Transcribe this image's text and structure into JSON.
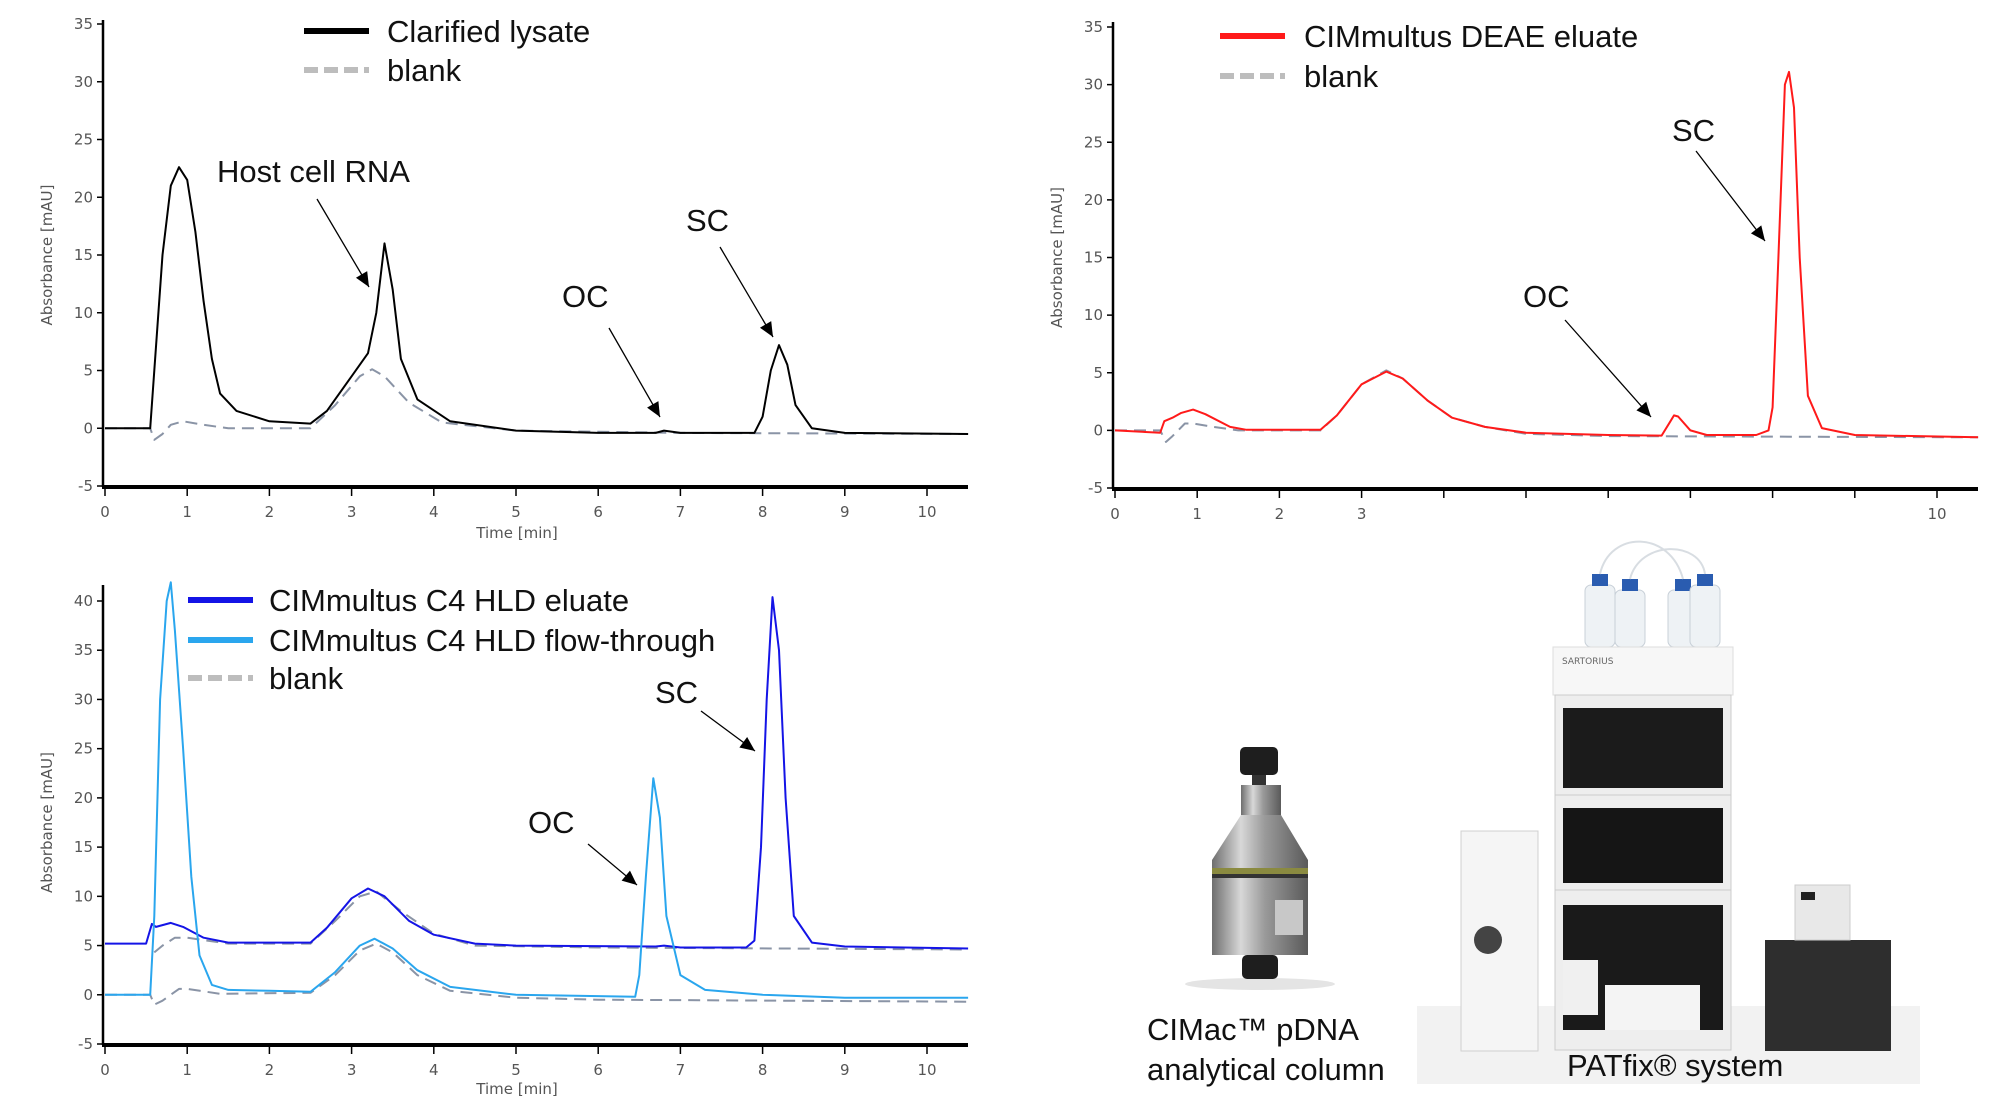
{
  "chart_data": [
    {
      "type": "line",
      "id": "c1",
      "xlabel": "Time [min]",
      "ylabel": "Absorbance [mAU]",
      "xlim": [
        0,
        10.5
      ],
      "ylim": [
        -5,
        35
      ],
      "xticks": [
        "0",
        "1",
        "2",
        "3",
        "4",
        "5",
        "6",
        "7",
        "8",
        "9",
        "10"
      ],
      "yticks": [
        "-5",
        "0",
        "5",
        "10",
        "15",
        "20",
        "25",
        "30",
        "35"
      ],
      "series": [
        {
          "name": "Clarified lysate",
          "color": "#000000",
          "style": "solid",
          "legend": true,
          "points": [
            [
              0,
              0
            ],
            [
              0.55,
              0
            ],
            [
              0.6,
              5
            ],
            [
              0.7,
              15
            ],
            [
              0.8,
              21
            ],
            [
              0.9,
              22.6
            ],
            [
              1.0,
              21.5
            ],
            [
              1.1,
              17
            ],
            [
              1.2,
              11
            ],
            [
              1.3,
              6
            ],
            [
              1.4,
              3
            ],
            [
              1.6,
              1.5
            ],
            [
              2.0,
              0.6
            ],
            [
              2.5,
              0.4
            ],
            [
              2.7,
              1.5
            ],
            [
              3.0,
              4.5
            ],
            [
              3.2,
              6.5
            ],
            [
              3.3,
              10
            ],
            [
              3.4,
              16
            ],
            [
              3.5,
              12
            ],
            [
              3.6,
              6
            ],
            [
              3.8,
              2.5
            ],
            [
              4.2,
              0.6
            ],
            [
              5,
              -0.2
            ],
            [
              6,
              -0.4
            ],
            [
              6.7,
              -0.4
            ],
            [
              6.8,
              -0.2
            ],
            [
              7,
              -0.4
            ],
            [
              7.9,
              -0.4
            ],
            [
              8.0,
              1
            ],
            [
              8.1,
              5
            ],
            [
              8.2,
              7.2
            ],
            [
              8.3,
              5.5
            ],
            [
              8.4,
              2
            ],
            [
              8.6,
              0
            ],
            [
              9,
              -0.4
            ],
            [
              10.5,
              -0.5
            ]
          ]
        },
        {
          "name": "blank",
          "color": "#8a94a6",
          "style": "dashed",
          "legend": true,
          "points": [
            [
              0,
              0
            ],
            [
              0.55,
              0
            ],
            [
              0.6,
              -1
            ],
            [
              0.7,
              -0.5
            ],
            [
              0.8,
              0.3
            ],
            [
              0.95,
              0.6
            ],
            [
              1.2,
              0.3
            ],
            [
              1.5,
              0
            ],
            [
              2.5,
              0
            ],
            [
              2.8,
              2
            ],
            [
              3.1,
              4.5
            ],
            [
              3.25,
              5.1
            ],
            [
              3.4,
              4.5
            ],
            [
              3.7,
              2.2
            ],
            [
              4.1,
              0.5
            ],
            [
              5,
              -0.2
            ],
            [
              7,
              -0.4
            ],
            [
              10.5,
              -0.5
            ]
          ]
        }
      ],
      "annotations": [
        "Host cell RNA",
        "OC",
        "SC"
      ]
    },
    {
      "type": "line",
      "id": "c2",
      "xlabel": "",
      "ylabel": "Absorbance [mAU]",
      "xlim": [
        0,
        10.5
      ],
      "ylim": [
        -5,
        35
      ],
      "xticks": [
        "0",
        "1",
        "2",
        "3",
        "",
        "",
        "",
        "",
        "",
        "",
        "10"
      ],
      "yticks": [
        "-5",
        "0",
        "5",
        "10",
        "15",
        "20",
        "25",
        "30",
        "35"
      ],
      "series": [
        {
          "name": "CIMmultus DEAE eluate",
          "color": "#ff1a1a",
          "style": "solid",
          "legend": true,
          "points": [
            [
              0,
              0
            ],
            [
              0.55,
              -0.2
            ],
            [
              0.6,
              0.8
            ],
            [
              0.7,
              1.1
            ],
            [
              0.8,
              1.5
            ],
            [
              0.95,
              1.8
            ],
            [
              1.1,
              1.4
            ],
            [
              1.4,
              0.3
            ],
            [
              1.6,
              0.05
            ],
            [
              2.5,
              0.05
            ],
            [
              2.7,
              1.3
            ],
            [
              3.0,
              4
            ],
            [
              3.3,
              5.1
            ],
            [
              3.5,
              4.5
            ],
            [
              3.8,
              2.6
            ],
            [
              4.1,
              1.1
            ],
            [
              4.5,
              0.3
            ],
            [
              5,
              -0.2
            ],
            [
              6,
              -0.4
            ],
            [
              6.65,
              -0.45
            ],
            [
              6.75,
              0.7
            ],
            [
              6.8,
              1.3
            ],
            [
              6.85,
              1.2
            ],
            [
              7,
              0
            ],
            [
              7.2,
              -0.4
            ],
            [
              7.8,
              -0.4
            ],
            [
              7.95,
              0
            ],
            [
              8.0,
              2
            ],
            [
              8.07,
              15
            ],
            [
              8.15,
              30
            ],
            [
              8.2,
              31.1
            ],
            [
              8.26,
              28
            ],
            [
              8.33,
              15
            ],
            [
              8.43,
              3
            ],
            [
              8.6,
              0.2
            ],
            [
              9,
              -0.4
            ],
            [
              10.5,
              -0.6
            ]
          ]
        },
        {
          "name": "blank",
          "color": "#8a94a6",
          "style": "dashed",
          "legend": true,
          "points": [
            [
              0,
              0
            ],
            [
              0.55,
              0
            ],
            [
              0.62,
              -1
            ],
            [
              0.7,
              -0.5
            ],
            [
              0.85,
              0.6
            ],
            [
              0.95,
              0.6
            ],
            [
              1.2,
              0.3
            ],
            [
              1.5,
              0
            ],
            [
              2.5,
              0
            ],
            [
              2.7,
              1.3
            ],
            [
              3.0,
              4
            ],
            [
              3.3,
              5.2
            ],
            [
              3.5,
              4.5
            ],
            [
              3.8,
              2.6
            ],
            [
              4.1,
              1.1
            ],
            [
              4.5,
              0.3
            ],
            [
              5,
              -0.3
            ],
            [
              6,
              -0.5
            ],
            [
              10.5,
              -0.6
            ]
          ]
        }
      ],
      "annotations": [
        "SC",
        "OC"
      ]
    },
    {
      "type": "line",
      "id": "c3",
      "xlabel": "Time [min]",
      "ylabel": "Absorbance [mAU]",
      "xlim": [
        0,
        10.5
      ],
      "ylim": [
        -5,
        40
      ],
      "xticks": [
        "0",
        "1",
        "2",
        "3",
        "4",
        "5",
        "6",
        "7",
        "8",
        "9",
        "10"
      ],
      "yticks": [
        "-5",
        "0",
        "5",
        "10",
        "15",
        "20",
        "25",
        "30",
        "35",
        "40"
      ],
      "series": [
        {
          "name": "CIMmultus C4 HLD eluate",
          "color": "#1414e6",
          "style": "solid",
          "legend": true,
          "points": [
            [
              0,
              5.2
            ],
            [
              0.5,
              5.2
            ],
            [
              0.57,
              7.2
            ],
            [
              0.62,
              6.9
            ],
            [
              0.8,
              7.3
            ],
            [
              0.95,
              6.9
            ],
            [
              1.2,
              5.8
            ],
            [
              1.5,
              5.3
            ],
            [
              2.5,
              5.3
            ],
            [
              2.7,
              6.8
            ],
            [
              3.0,
              9.8
            ],
            [
              3.2,
              10.8
            ],
            [
              3.4,
              10
            ],
            [
              3.7,
              7.5
            ],
            [
              4.0,
              6.1
            ],
            [
              4.5,
              5.2
            ],
            [
              5,
              5
            ],
            [
              6.7,
              4.9
            ],
            [
              6.8,
              5
            ],
            [
              7,
              4.8
            ],
            [
              7.8,
              4.8
            ],
            [
              7.9,
              5.5
            ],
            [
              7.98,
              15
            ],
            [
              8.05,
              30
            ],
            [
              8.12,
              40.4
            ],
            [
              8.2,
              35
            ],
            [
              8.28,
              20
            ],
            [
              8.38,
              8
            ],
            [
              8.6,
              5.3
            ],
            [
              9,
              4.9
            ],
            [
              10.5,
              4.7
            ]
          ]
        },
        {
          "name": "CIMmultus C4 HLD flow-through",
          "color": "#2aa6ee",
          "style": "solid",
          "legend": true,
          "points": [
            [
              0,
              0
            ],
            [
              0.55,
              0
            ],
            [
              0.6,
              8
            ],
            [
              0.67,
              30
            ],
            [
              0.75,
              40
            ],
            [
              0.8,
              41.9
            ],
            [
              0.85,
              37
            ],
            [
              0.95,
              25
            ],
            [
              1.05,
              12
            ],
            [
              1.15,
              4
            ],
            [
              1.3,
              1
            ],
            [
              1.5,
              0.5
            ],
            [
              2,
              0.4
            ],
            [
              2.5,
              0.3
            ],
            [
              2.8,
              2.3
            ],
            [
              3.1,
              5
            ],
            [
              3.28,
              5.7
            ],
            [
              3.5,
              4.7
            ],
            [
              3.8,
              2.5
            ],
            [
              4.2,
              0.8
            ],
            [
              5,
              0
            ],
            [
              6.45,
              -0.2
            ],
            [
              6.5,
              2
            ],
            [
              6.58,
              12
            ],
            [
              6.67,
              22
            ],
            [
              6.75,
              18
            ],
            [
              6.83,
              8
            ],
            [
              7,
              2
            ],
            [
              7.3,
              0.5
            ],
            [
              8,
              0
            ],
            [
              9,
              -0.3
            ],
            [
              10.5,
              -0.3
            ]
          ]
        },
        {
          "name": "blank",
          "color": "#8a94a6",
          "style": "dashed",
          "legend": true,
          "points": [
            [
              0.6,
              4.3
            ],
            [
              0.7,
              5
            ],
            [
              0.85,
              5.8
            ],
            [
              1.0,
              5.8
            ],
            [
              1.5,
              5.2
            ],
            [
              2.5,
              5.2
            ],
            [
              2.8,
              7.5
            ],
            [
              3.1,
              10
            ],
            [
              3.3,
              10.5
            ],
            [
              3.6,
              8.5
            ],
            [
              4.0,
              6.2
            ],
            [
              4.5,
              5
            ],
            [
              6,
              4.8
            ],
            [
              10.5,
              4.6
            ]
          ]
        },
        {
          "name": "blank",
          "color": "#8a94a6",
          "style": "dashed",
          "legend": false,
          "points": [
            [
              0,
              0
            ],
            [
              0.55,
              0
            ],
            [
              0.6,
              -1
            ],
            [
              0.7,
              -0.6
            ],
            [
              0.9,
              0.6
            ],
            [
              1.0,
              0.6
            ],
            [
              1.4,
              0.1
            ],
            [
              2.5,
              0.2
            ],
            [
              2.8,
              2
            ],
            [
              3.1,
              4.5
            ],
            [
              3.3,
              5.2
            ],
            [
              3.5,
              4.3
            ],
            [
              3.8,
              2
            ],
            [
              4.2,
              0.4
            ],
            [
              5,
              -0.3
            ],
            [
              6,
              -0.5
            ],
            [
              10.5,
              -0.7
            ]
          ]
        }
      ],
      "annotations": [
        "SC",
        "OC"
      ]
    }
  ],
  "products": {
    "column_caption_line1": "CIMac™ pDNA",
    "column_caption_line2": "analytical column",
    "system_caption": "PATfix® system",
    "system_brand": "SARTORIUS"
  }
}
